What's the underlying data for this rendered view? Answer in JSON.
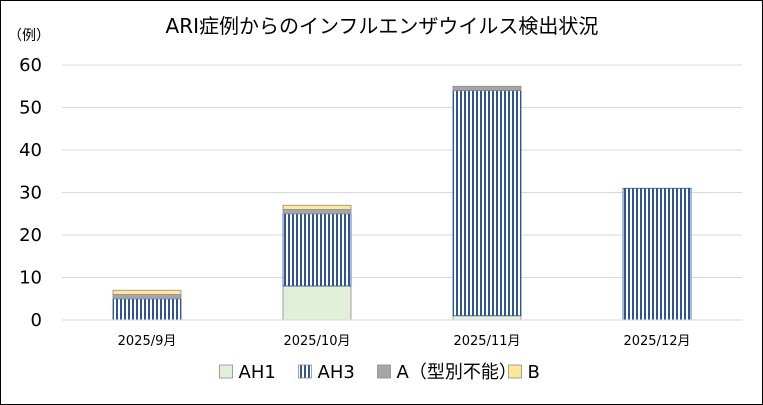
{
  "chart_data": {
    "type": "bar",
    "stacked": true,
    "title": "ARI症例からのインフルエンザウイルス検出状況",
    "ylabel": "（例）",
    "xlabel": "",
    "categories": [
      "2025/9月",
      "2025/10月",
      "2025/11月",
      "2025/12月"
    ],
    "ylim": [
      0,
      60
    ],
    "yticks": [
      0,
      10,
      20,
      30,
      40,
      50,
      60
    ],
    "grid": true,
    "legend_position": "bottom",
    "series": [
      {
        "name": "AH1",
        "values": [
          0,
          8,
          1,
          0
        ],
        "color": "#e2efd9",
        "pattern": "solid"
      },
      {
        "name": "AH3",
        "values": [
          5,
          17,
          53,
          31
        ],
        "color": "#2f5597",
        "pattern": "vertical-stripes"
      },
      {
        "name": "A（型別不能）",
        "values": [
          1,
          1,
          1,
          0
        ],
        "color": "#a6a6a6",
        "pattern": "solid"
      },
      {
        "name": "B",
        "values": [
          1,
          1,
          0,
          0
        ],
        "color": "#ffe699",
        "pattern": "solid"
      }
    ]
  }
}
